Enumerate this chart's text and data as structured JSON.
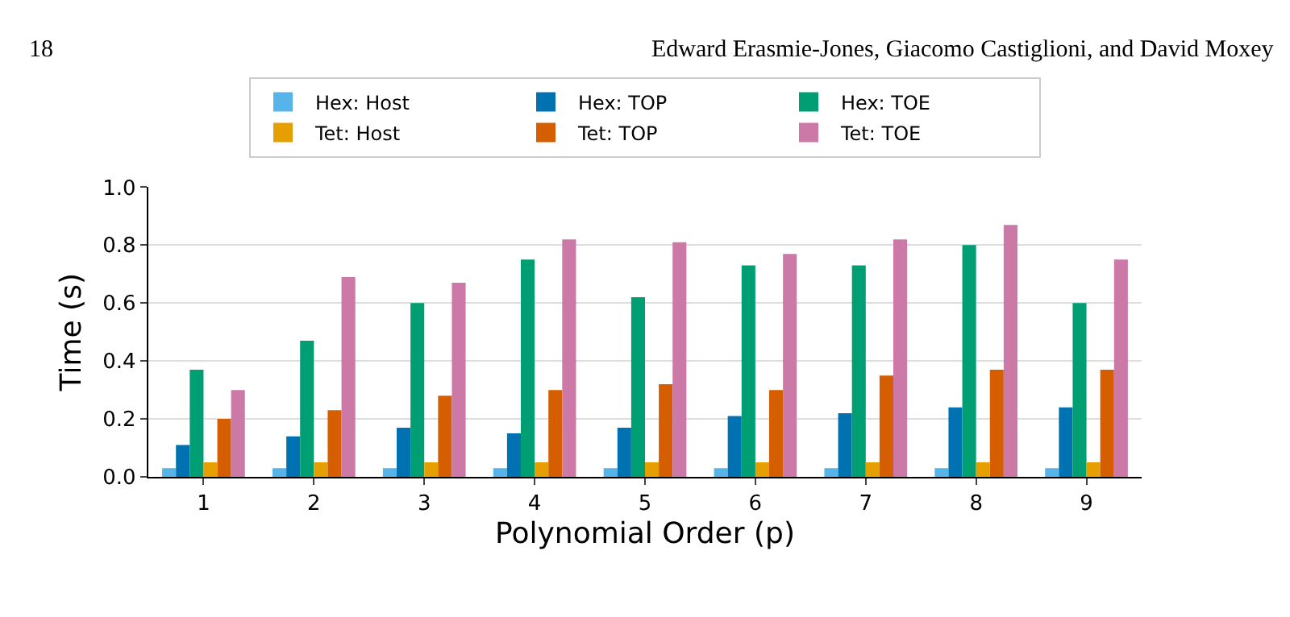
{
  "chart_data": {
    "type": "bar",
    "xlabel": "Polynomial Order (p)",
    "ylabel": "Time (s)",
    "categories": [
      "1",
      "2",
      "3",
      "4",
      "5",
      "6",
      "7",
      "8",
      "9"
    ],
    "series": [
      {
        "name": "Hex: Host",
        "color": "#56b4e9",
        "values": [
          0.03,
          0.03,
          0.03,
          0.03,
          0.03,
          0.03,
          0.03,
          0.03,
          0.03
        ]
      },
      {
        "name": "Hex: TOP",
        "color": "#0072b2",
        "values": [
          0.11,
          0.14,
          0.17,
          0.15,
          0.17,
          0.21,
          0.22,
          0.24,
          0.24
        ]
      },
      {
        "name": "Hex: TOE",
        "color": "#009e73",
        "values": [
          0.37,
          0.47,
          0.6,
          0.75,
          0.62,
          0.73,
          0.73,
          0.8,
          0.6
        ]
      },
      {
        "name": "Tet: Host",
        "color": "#e69f00",
        "values": [
          0.05,
          0.05,
          0.05,
          0.05,
          0.05,
          0.05,
          0.05,
          0.05,
          0.05
        ]
      },
      {
        "name": "Tet: TOP",
        "color": "#d55e00",
        "values": [
          0.2,
          0.23,
          0.28,
          0.3,
          0.32,
          0.3,
          0.35,
          0.37,
          0.37
        ]
      },
      {
        "name": "Tet: TOE",
        "color": "#cc79a7",
        "values": [
          0.3,
          0.69,
          0.67,
          0.82,
          0.81,
          0.77,
          0.82,
          0.87,
          0.75
        ]
      }
    ],
    "ylim": [
      0,
      1.0
    ],
    "yticks": [
      {
        "value": 0,
        "label": "0.0"
      },
      0.2,
      0.4,
      0.6,
      0.8,
      {
        "value": 1.0,
        "label": "1.0"
      }
    ],
    "grid": "y",
    "legend": "top",
    "annotations": [
      "18",
      "Edward Erasmie-Jones, Giacomo Castiglioni, and David Moxey"
    ]
  }
}
